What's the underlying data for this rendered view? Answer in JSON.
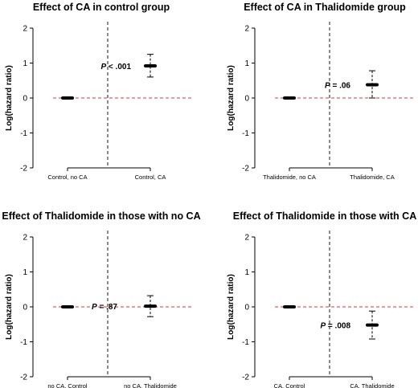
{
  "chart_data": [
    {
      "type": "scatter",
      "title": "Effect of CA in control group",
      "xlabel": "",
      "ylabel": "Log(hazard ratio)",
      "ylim": [
        -2,
        2
      ],
      "yticks": [
        2,
        1,
        0,
        -1,
        -2
      ],
      "categories": [
        "Control, no CA",
        "Control, CA"
      ],
      "points": [
        {
          "category": "Control, no CA",
          "estimate": 0,
          "lower": 0,
          "upper": 0
        },
        {
          "category": "Control, CA",
          "estimate": 0.92,
          "lower": 0.6,
          "upper": 1.25
        }
      ],
      "p_label": {
        "prefix": "P",
        "rest": " < .001"
      },
      "reference_line": 0,
      "grid": false
    },
    {
      "type": "scatter",
      "title": "Effect of CA in Thalidomide group",
      "xlabel": "",
      "ylabel": "Log(hazard ratio)",
      "ylim": [
        -2,
        2
      ],
      "yticks": [
        2,
        1,
        0,
        -1,
        -2
      ],
      "categories": [
        "Thalidomide, no CA",
        "Thalidomide, CA"
      ],
      "points": [
        {
          "category": "Thalidomide, no CA",
          "estimate": 0,
          "lower": 0,
          "upper": 0
        },
        {
          "category": "Thalidomide, CA",
          "estimate": 0.38,
          "lower": 0.0,
          "upper": 0.78
        }
      ],
      "p_label": {
        "prefix": "P",
        "rest": " = .06"
      },
      "reference_line": 0,
      "grid": false
    },
    {
      "type": "scatter",
      "title": "Effect of Thalidomide in those with no CA",
      "xlabel": "",
      "ylabel": "Log(hazard ratio)",
      "ylim": [
        -2,
        2
      ],
      "yticks": [
        2,
        1,
        0,
        -1,
        -2
      ],
      "categories": [
        "no CA, Control",
        "no CA, Thalidomide"
      ],
      "points": [
        {
          "category": "no CA, Control",
          "estimate": 0,
          "lower": 0,
          "upper": 0
        },
        {
          "category": "no CA, Thalidomide",
          "estimate": 0.02,
          "lower": -0.28,
          "upper": 0.32
        }
      ],
      "p_label": {
        "prefix": "P",
        "rest": " = .87"
      },
      "reference_line": 0,
      "grid": false
    },
    {
      "type": "scatter",
      "title": "Effect of Thalidomide in those with CA",
      "xlabel": "",
      "ylabel": "Log(hazard ratio)",
      "ylim": [
        -2,
        2
      ],
      "yticks": [
        2,
        1,
        0,
        -1,
        -2
      ],
      "categories": [
        "CA, Control",
        "CA, Thalidomide"
      ],
      "points": [
        {
          "category": "CA, Control",
          "estimate": 0,
          "lower": 0,
          "upper": 0
        },
        {
          "category": "CA, Thalidomide",
          "estimate": -0.52,
          "lower": -0.92,
          "upper": -0.12
        }
      ],
      "p_label": {
        "prefix": "P",
        "rest": " = .008"
      },
      "reference_line": 0,
      "grid": false
    }
  ]
}
